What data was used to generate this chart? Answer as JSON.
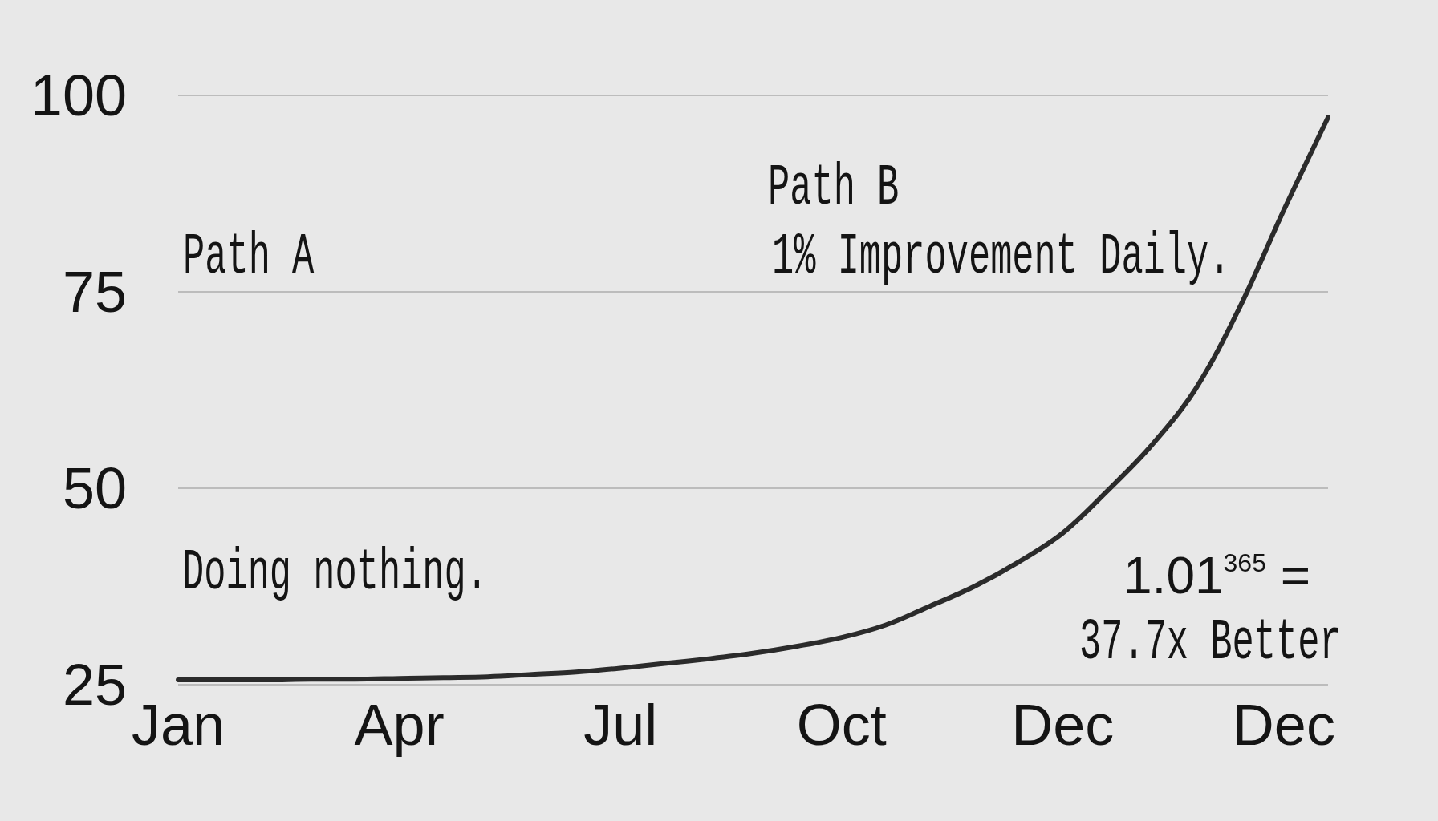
{
  "chart_data": {
    "type": "line",
    "categories": [
      "Jan",
      null,
      null,
      null,
      null,
      "Apr",
      null,
      null,
      null,
      null,
      "Jul",
      null,
      null,
      null,
      null,
      "Oct",
      null,
      null,
      null,
      null,
      "Dec",
      null,
      null,
      null,
      null,
      "Dec",
      null
    ],
    "series": [
      {
        "color": "#2b2b2b",
        "values": [
          25.6,
          25.6,
          25.6,
          25.7,
          25.7,
          25.8,
          25.9,
          26.0,
          26.3,
          26.6,
          27.1,
          27.7,
          28.3,
          29.0,
          29.9,
          31.0,
          32.6,
          35.0,
          37.5,
          40.6,
          44.3,
          49.6,
          55.4,
          62.6,
          73.0,
          85.4,
          97.2
        ]
      }
    ],
    "ylim": [
      25,
      100
    ],
    "yticks": [
      25,
      50,
      75,
      100
    ],
    "grid": "y",
    "marker": "none",
    "line_style": "solid",
    "annotations": [
      "Path A",
      "Doing nothing.",
      "Path B",
      "1% Improvement Daily.",
      "1.01$^{365}$ =",
      "37.7x Better"
    ]
  }
}
